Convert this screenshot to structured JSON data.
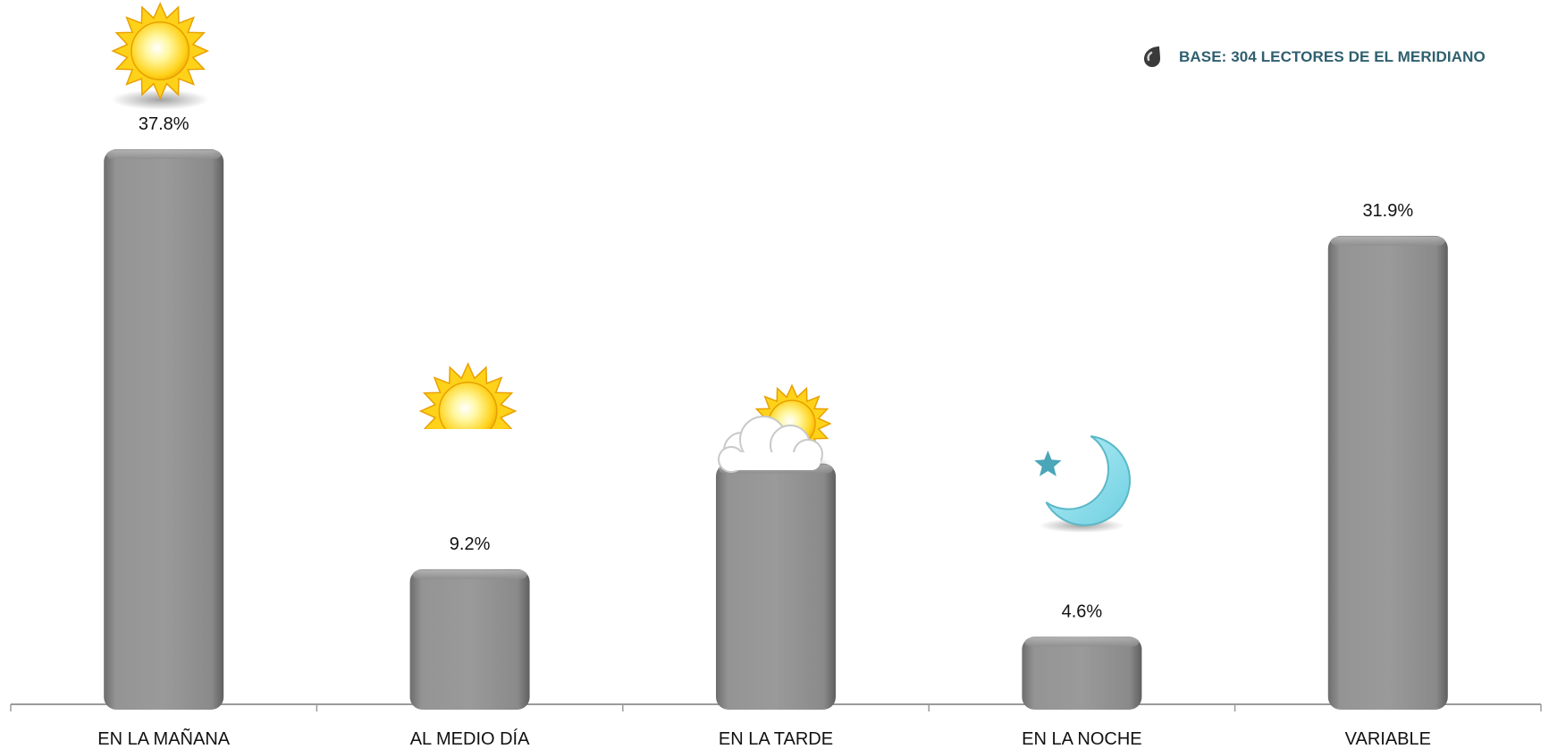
{
  "base_note": {
    "text": "BASE:  304 LECTORES DE EL MERIDIANO",
    "icon": "ink-drop-icon",
    "color": "#2f5f6f"
  },
  "chart_data": {
    "type": "bar",
    "categories": [
      "EN LA MAÑANA",
      "AL MEDIO DÍA",
      "EN LA TARDE",
      "EN LA NOCHE",
      "VARIABLE"
    ],
    "values": [
      37.8,
      9.2,
      16.4,
      4.6,
      31.9
    ],
    "value_labels": [
      "37.8%",
      "9.2%",
      "",
      "4.6%",
      "31.9%"
    ],
    "icons": [
      "sun-icon",
      "sun-icon",
      "sun-cloud-icon",
      "moon-star-icon",
      null
    ],
    "title": "",
    "xlabel": "",
    "ylabel": "",
    "ylim": [
      0,
      40
    ],
    "grid": false,
    "legend": "none",
    "bar_color": "#8e8e8e"
  }
}
